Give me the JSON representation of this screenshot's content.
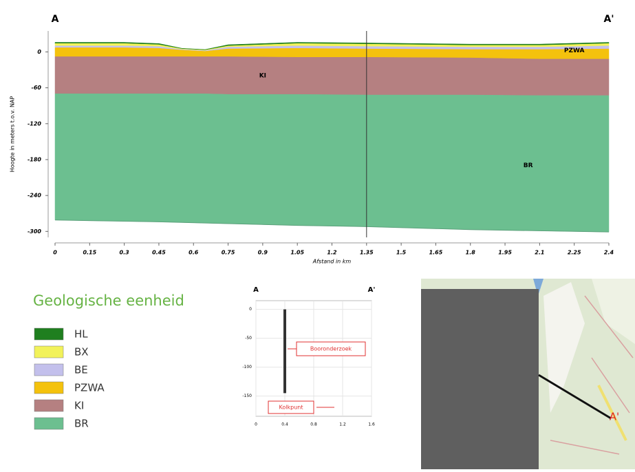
{
  "chart_data": {
    "type": "area",
    "left_label": "A",
    "right_label": "A'",
    "y_label": "Hoogte in meters t.o.v. NAP",
    "x_label": "Afstand in km",
    "x": [
      0,
      0.3,
      0.45,
      0.55,
      0.65,
      0.75,
      1.05,
      1.35,
      1.8,
      2.1,
      2.4
    ],
    "series": [
      {
        "name": "HL",
        "color": "#1f7f1f",
        "values": [
          16,
          16,
          14,
          6,
          4,
          12,
          16,
          15,
          13,
          13,
          16
        ]
      },
      {
        "name": "BX",
        "color": "#f2f25a",
        "values": [
          14,
          14,
          12,
          5,
          3,
          10,
          14,
          13,
          11,
          11,
          14
        ]
      },
      {
        "name": "BE",
        "color": "#c3c0ec",
        "values": [
          10,
          10,
          9,
          4,
          2,
          8,
          10,
          9,
          8,
          8,
          10
        ]
      },
      {
        "name": "PZWA",
        "color": "#f4c20d",
        "values": [
          7,
          7,
          6,
          3,
          1,
          5,
          6,
          5,
          4,
          4,
          5
        ]
      },
      {
        "name": "KI",
        "color": "#b58081",
        "values": [
          -8,
          -8,
          -8,
          -8,
          -8,
          -8,
          -9,
          -9,
          -10,
          -12,
          -12
        ]
      },
      {
        "name": "BR",
        "color": "#6cbf90",
        "values": [
          -70,
          -70,
          -70,
          -70,
          -70,
          -71,
          -71,
          -72,
          -72,
          -73,
          -73
        ]
      }
    ],
    "base": [
      -281,
      -283,
      -284,
      -285,
      -286,
      -287,
      -290,
      -292,
      -297,
      -299,
      -301
    ],
    "annotations": [
      {
        "text": "KI",
        "x": 0.9,
        "y": -40
      },
      {
        "text": "PZWA",
        "x": 2.25,
        "y": 2
      },
      {
        "text": "BR",
        "x": 2.05,
        "y": -190
      }
    ],
    "marker_x": 1.35,
    "xlim": [
      0,
      2.4
    ],
    "ylim": [
      -310,
      35
    ],
    "xticks": [
      0,
      0.15,
      0.3,
      0.45,
      0.6,
      0.75,
      0.9,
      1.05,
      1.2,
      1.35,
      1.5,
      1.65,
      1.8,
      1.95,
      2.1,
      2.25,
      2.4
    ],
    "yticks": [
      0,
      -60,
      -120,
      -180,
      -240,
      -300
    ],
    "legend_title": "Geologische eenheid"
  },
  "inset": {
    "left_label": "A",
    "right_label": "A'",
    "boring": {
      "x": 0.4,
      "top": 0,
      "bottom": -145
    },
    "xlim": [
      0,
      1.6
    ],
    "ylim": [
      -185,
      15
    ],
    "xticks": [
      0,
      0.4,
      0.8,
      1.2,
      1.6
    ],
    "yticks": [
      0,
      -50,
      -100,
      -150
    ],
    "boring_label": "Booronderzoek",
    "point_label": "Kolkpunt"
  },
  "map": {
    "label": "A'"
  }
}
